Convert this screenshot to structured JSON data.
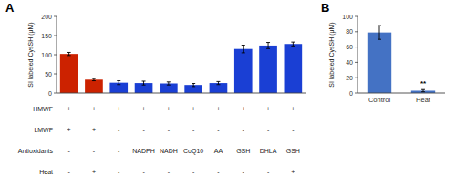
{
  "chart_data": [
    {
      "type": "bar",
      "title": "A",
      "categories": [
        null,
        null,
        null,
        null,
        null,
        null,
        null,
        null,
        null,
        null
      ],
      "values": [
        102,
        35,
        27,
        26,
        25,
        21,
        26,
        115,
        124,
        128
      ],
      "errors": [
        4,
        3,
        5,
        5,
        4,
        4,
        4,
        10,
        8,
        5
      ],
      "colors": [
        "#cc2200",
        "#cc2200",
        "#1a3fd4",
        "#1a3fd4",
        "#1a3fd4",
        "#1a3fd4",
        "#1a3fd4",
        "#1a3fd4",
        "#1a3fd4",
        "#1a3fd4"
      ],
      "ylim": [
        0,
        200
      ],
      "yticks": [
        0,
        50,
        100,
        150,
        200
      ],
      "ylabel": "SI labeled CysSH (μM)",
      "tick_labels": "y",
      "table": {
        "row_labels": [
          "HMWF",
          "LMWF",
          "Antioxidants",
          "Heat"
        ],
        "rows": [
          [
            "+",
            "+",
            "+",
            "+",
            "+",
            "+",
            "+",
            "+",
            "+",
            "+"
          ],
          [
            "+",
            "+",
            "-",
            "-",
            "-",
            "-",
            "-",
            "-",
            "-",
            "-"
          ],
          [
            "-",
            "-",
            "-",
            "NADPH",
            "NADH",
            "CoQ10",
            "AA",
            "GSH",
            "DHLA",
            "GSH"
          ],
          [
            "-",
            "+",
            "-",
            "-",
            "-",
            "-",
            "-",
            "-",
            "-",
            "+"
          ]
        ]
      }
    },
    {
      "type": "bar",
      "title": "B",
      "categories": [
        "Control",
        "Heat"
      ],
      "values": [
        79,
        3
      ],
      "errors": [
        9,
        1.5
      ],
      "color": "#4472c4",
      "ylim": [
        0,
        100
      ],
      "yticks": [
        0,
        20,
        40,
        60,
        80,
        100
      ],
      "ylabel": "SI labeled CysSH (μM)",
      "annotations": [
        {
          "text": "**",
          "x": "Heat"
        }
      ]
    }
  ]
}
